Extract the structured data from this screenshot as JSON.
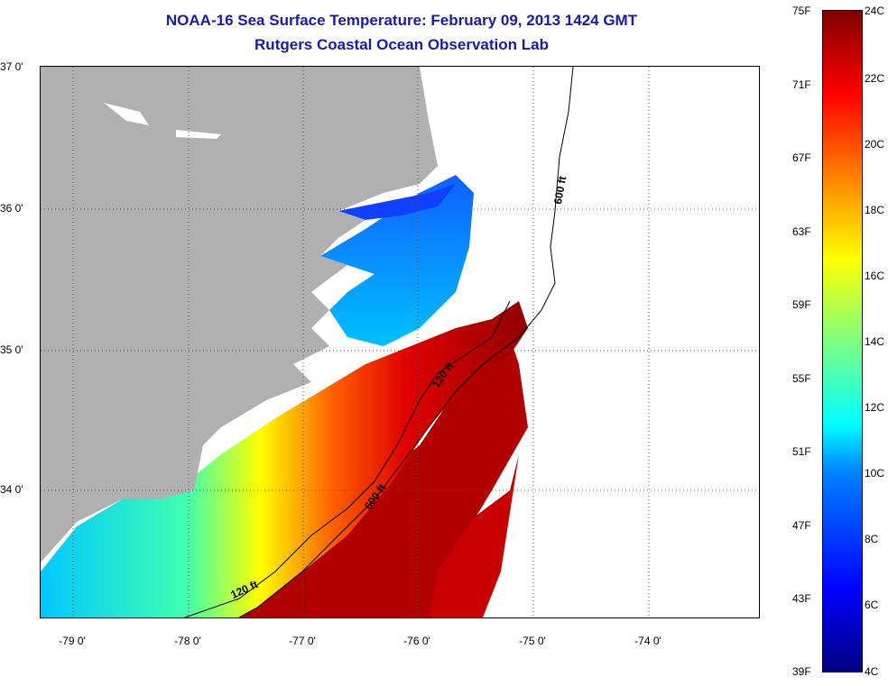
{
  "title": "NOAA-16 Sea Surface Temperature:  February 09, 2013 1424 GMT",
  "subtitle": "Rutgers Coastal Ocean Observation Lab",
  "lat_labels": [
    "37 0'",
    "36 0'",
    "35 0'",
    "34 0'"
  ],
  "lon_labels": [
    "-79 0'",
    "-78 0'",
    "-77 0'",
    "-76 0'",
    "-75 0'",
    "-74 0'"
  ],
  "contour_labels": [
    "600 ft",
    "120 ft",
    "600 ft",
    "120 ft"
  ],
  "colorbar": {
    "fahrenheit": [
      "75F",
      "71F",
      "67F",
      "63F",
      "59F",
      "55F",
      "51F",
      "47F",
      "43F",
      "39F"
    ],
    "celsius": [
      "24C",
      "22C",
      "20C",
      "18C",
      "16C",
      "14C",
      "12C",
      "10C",
      "8C",
      "6C",
      "4C"
    ]
  },
  "colors": {
    "title": "#1a1aa8",
    "land": "#b0b0b0",
    "warm": "#a00000",
    "cool": "#00c8ff"
  }
}
